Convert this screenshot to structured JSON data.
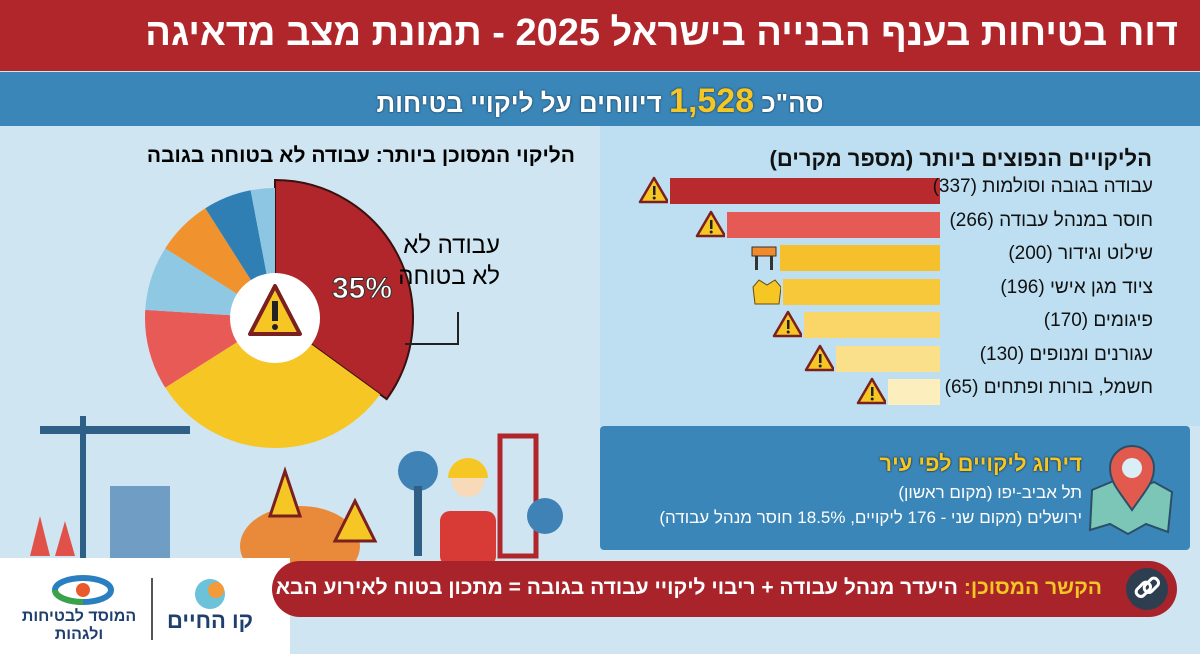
{
  "header": {
    "title": "דוח בטיחות בענף הבנייה בישראל 2025 - תמונת מצב מדאיגה"
  },
  "total": {
    "prefix": "סה\"כ",
    "number": "1,528",
    "suffix": "דיווחים על ליקויי בטיחות"
  },
  "colors": {
    "red": "#b0262b",
    "blue": "#3a86b8",
    "yellow": "#f6c624"
  },
  "chart_data": [
    {
      "type": "bar",
      "title": "הליקויים הנפוצים ביותר (מספר מקרים)",
      "categories": [
        "עבודה בגובה וסולמות",
        "חוסר במנהל עבודה",
        "שילוט וגידור",
        "ציוד מגן אישי",
        "פיגומים",
        "עגורנים ומנופים",
        "חשמל, בורות ופתחים"
      ],
      "labels": [
        "עבודה בגובה וסולמות (337)",
        "חוסר במנהל עבודה (266)",
        "שילוט וגידור (200)",
        "ציוד מגן אישי (196)",
        "פיגומים (170)",
        "עגורנים ומנופים (130)",
        "חשמל, בורות ופתחים (65)"
      ],
      "values": [
        337,
        266,
        200,
        196,
        170,
        130,
        65
      ],
      "bar_colors": [
        "#b82a2e",
        "#e55a55",
        "#f5c02c",
        "#f7c83a",
        "#f9d667",
        "#fbe08b",
        "#fdeebe"
      ],
      "icons": [
        "fall-warning-icon",
        "warning-icon",
        "barrier-icon",
        "safety-vest-icon",
        "warning-icon",
        "crane-warning-icon",
        "electric-warning-icon"
      ]
    },
    {
      "type": "pie",
      "title": "הליקוי המסוכן ביותר: עבודה לא בטוחה בגובה",
      "highlight_label": "35%",
      "callout": [
        "עבודה לא",
        "לא בטוחה"
      ],
      "values": [
        35,
        31,
        10,
        8,
        7,
        6,
        3
      ],
      "slice_colors": [
        "#b0262b",
        "#f6c624",
        "#e85a55",
        "#8fc8e3",
        "#f0922e",
        "#2f7fb5",
        "#8cc6e2"
      ]
    }
  ],
  "city": {
    "title": "דירוג ליקויים לפי עיר",
    "line1": "תל אביב-יפו (מקום ראשון)",
    "line2": "ירושלים (מקום שני - 176 ליקויים, 18.5% חוסר מנהל עבודה)"
  },
  "banner": {
    "key": "הקשר המסוכן:",
    "text": "היעדר מנהל עבודה + ריבוי ליקויי עבודה בגובה = מתכון בטוח לאירוע הבא"
  },
  "logos": {
    "kav_hachaim": "קו החיים",
    "mosad": "המוסד לבטיחות ולגהות"
  }
}
